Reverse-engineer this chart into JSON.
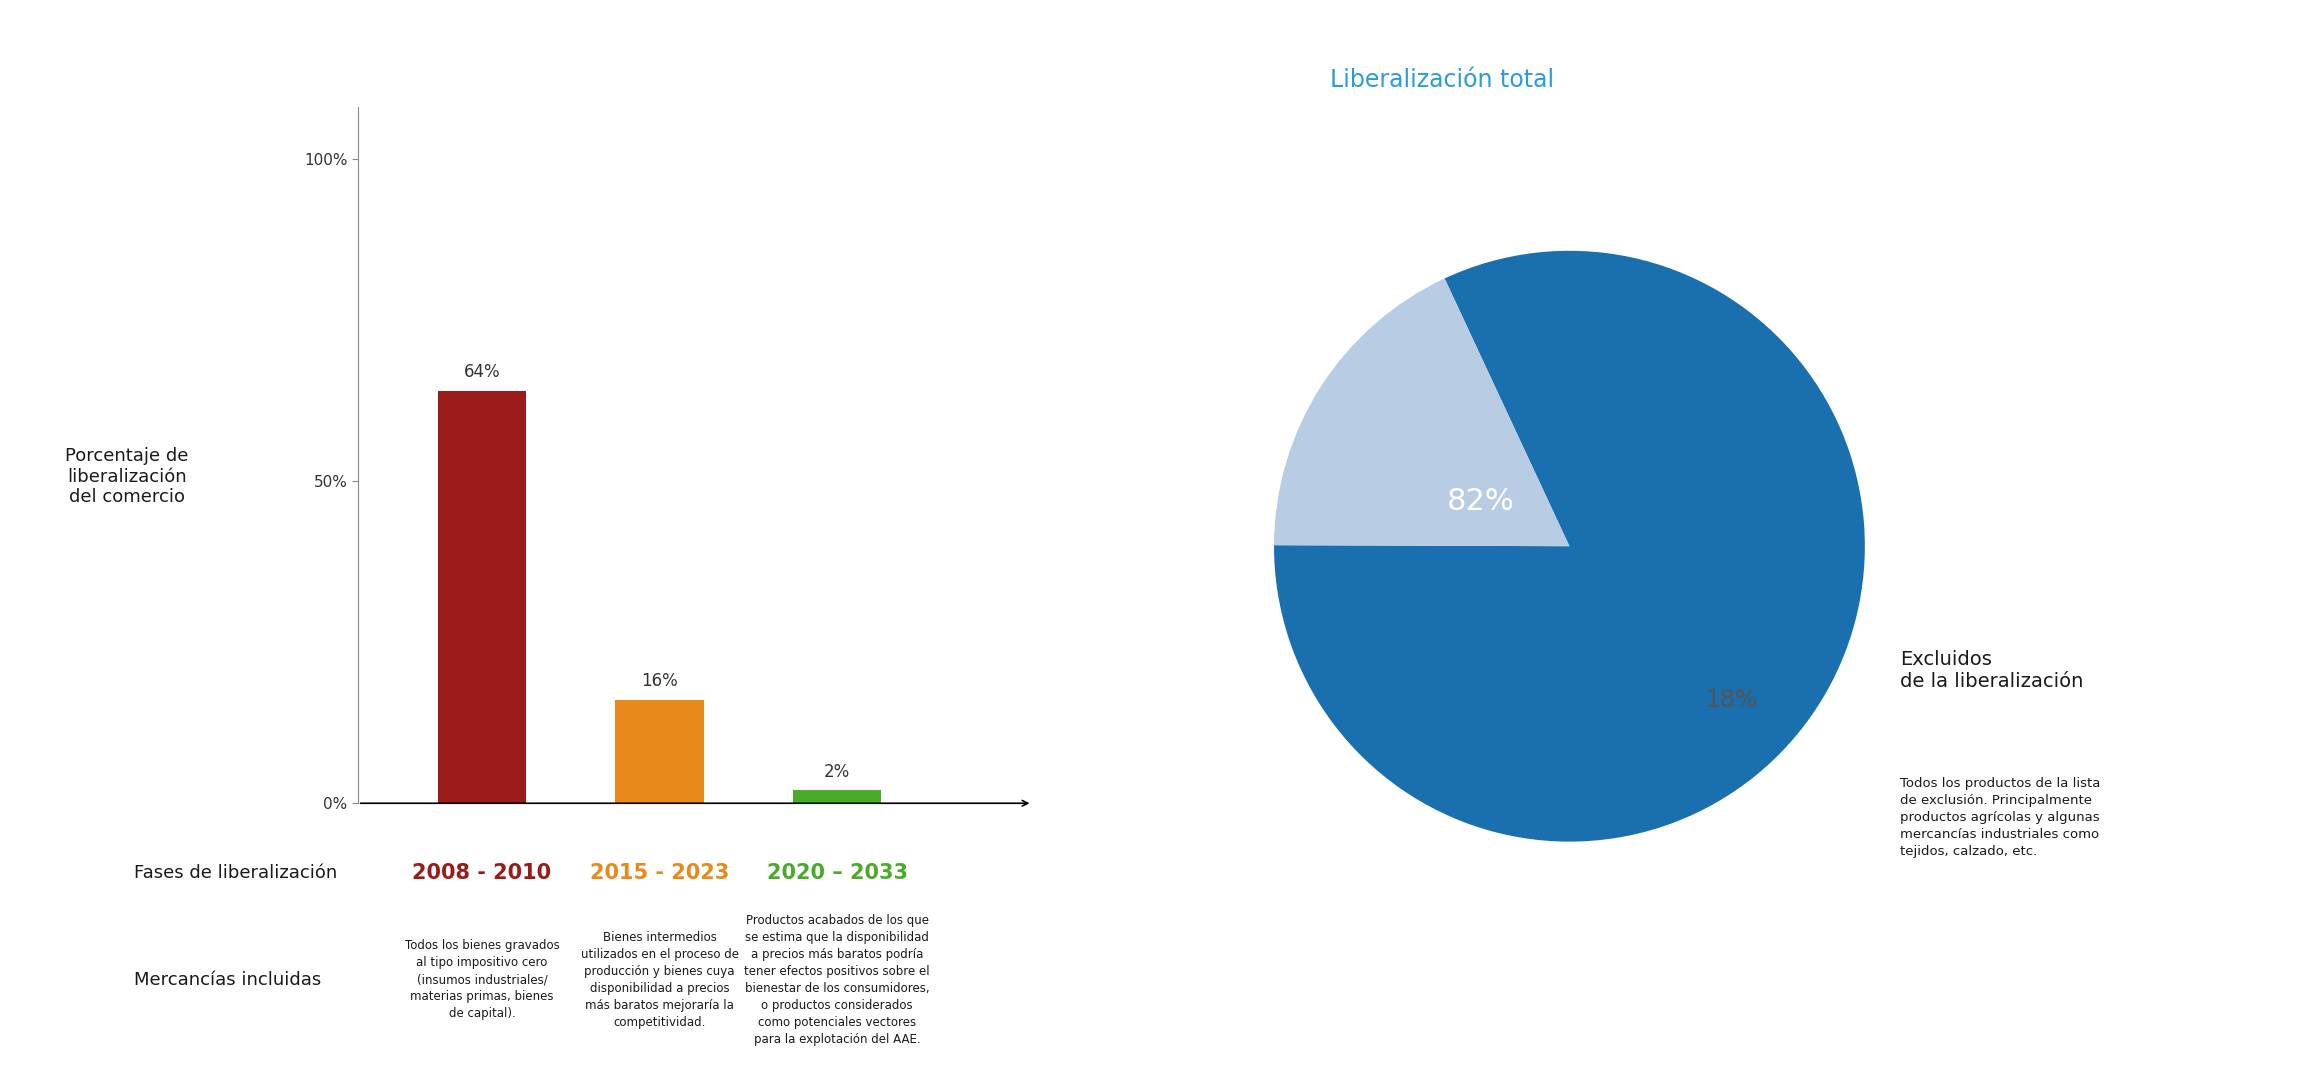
{
  "bar_values": [
    64,
    16,
    2
  ],
  "bar_colors": [
    "#9b1b1b",
    "#e8891a",
    "#4aaa2a"
  ],
  "bar_labels": [
    "64%",
    "16%",
    "2%"
  ],
  "phase_labels": [
    "2008 - 2010",
    "2015 - 2023",
    "2020 – 2033"
  ],
  "phase_colors": [
    "#9b1b1b",
    "#e8891a",
    "#4aaa2a"
  ],
  "yticks": [
    0,
    50,
    100
  ],
  "ytick_labels": [
    "0%",
    "50%",
    "100%"
  ],
  "ylabel": "Porcentaje de\nliberalización\ndel comercio",
  "xlabel_row1": "Fases de liberalización",
  "xlabel_row2": "Mercancías incluidas",
  "mercancias_texts": [
    "Todos los bienes gravados\nal tipo impositivo cero\n(insumos industriales/\nmaterias primas, bienes\nde capital).",
    "Bienes intermedios\nutilizados en el proceso de\nproducción y bienes cuya\ndisponibilidad a precios\nmás baratos mejoraría la\ncompetitividad.",
    "Productos acabados de los que\nse estima que la disponibilidad\na precios más baratos podría\ntener efectos positivos sobre el\nbienestar de los consumidores,\no productos considerados\ncomo potenciales vectores\npara la explotación del AAE."
  ],
  "pie_values": [
    82,
    18
  ],
  "pie_colors": [
    "#1a6faf",
    "#b8cce4"
  ],
  "pie_title": "Liberalización total",
  "pie_title_color": "#2b9cd8",
  "pie_label_excluded": "Excluidos\nde la liberalización",
  "pie_desc": "Todos los productos de la lista\nde exclusión. Principalmente\nproductos agrícolas y algunas\nmercancías industriales como\ntejidos, calzado, etc.",
  "background_color": "#ffffff",
  "text_color": "#1a1a1a"
}
